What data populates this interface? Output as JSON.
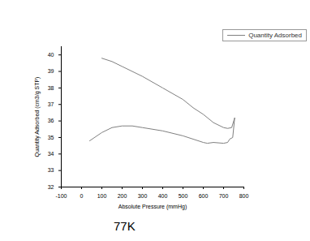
{
  "chart_data": {
    "type": "line",
    "x_label": "Absolute Pressure (mmHg)",
    "y_label": "Quantity Adsorbed (cm3/g STP)",
    "annotation": "77K",
    "legend": "top-right",
    "xlim": [
      -100,
      800
    ],
    "xticks": [
      -100,
      0,
      100,
      200,
      300,
      400,
      500,
      600,
      700,
      800
    ],
    "ylim": [
      32,
      40.5
    ],
    "yticks": [
      32,
      33,
      34,
      35,
      36,
      37,
      38,
      39,
      40
    ],
    "x": [
      40,
      100,
      150,
      200,
      250,
      300,
      400,
      500,
      550,
      600,
      620,
      650,
      700,
      720,
      730,
      745,
      755,
      740,
      720,
      700,
      650,
      600,
      550,
      500,
      400,
      300,
      200,
      150,
      100
    ],
    "series": [
      {
        "name": "Quantity Adsorbed",
        "color": "#808080",
        "line_style": "solid",
        "values": [
          34.8,
          35.3,
          35.6,
          35.7,
          35.7,
          35.6,
          35.4,
          35.1,
          34.9,
          34.7,
          34.65,
          34.7,
          34.65,
          34.7,
          34.9,
          35.0,
          36.2,
          35.6,
          35.55,
          35.6,
          35.9,
          36.4,
          36.8,
          37.3,
          38.0,
          38.7,
          39.3,
          39.6,
          39.8
        ]
      }
    ]
  }
}
